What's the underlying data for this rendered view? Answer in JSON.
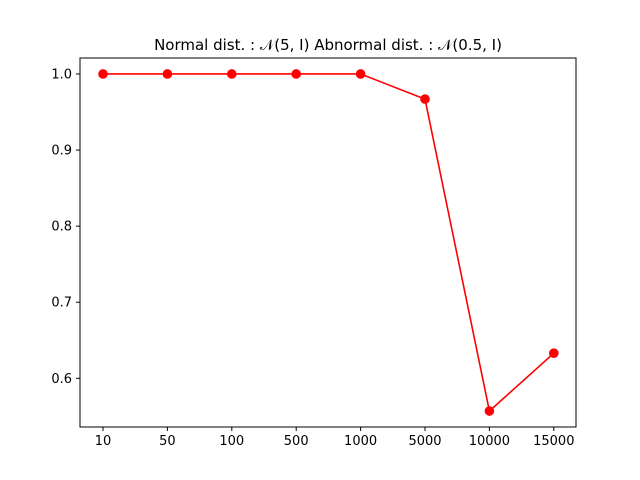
{
  "chart_data": {
    "type": "line",
    "title": "Normal dist. : 𝒩(5, I) Abnormal dist. : 𝒩(0.5, I)",
    "xlabel": "",
    "ylabel": "",
    "categories": [
      "10",
      "50",
      "100",
      "500",
      "1000",
      "5000",
      "10000",
      "15000"
    ],
    "series": [
      {
        "values": [
          1.0,
          1.0,
          1.0,
          1.0,
          1.0,
          0.967,
          0.557,
          0.633
        ],
        "color": "#ff0000",
        "marker": "circle"
      }
    ],
    "ylim": [
      0.536,
      1.021
    ],
    "yticks": [
      0.6,
      0.7,
      0.8,
      0.9,
      1.0
    ],
    "ytick_labels": [
      "0.6",
      "0.7",
      "0.8",
      "0.9",
      "1.0"
    ],
    "grid": false,
    "legend": "none"
  }
}
